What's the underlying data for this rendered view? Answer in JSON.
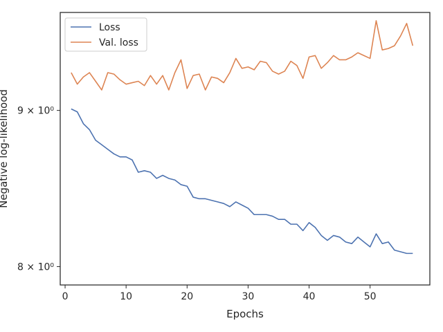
{
  "chart_data": {
    "type": "line",
    "xlabel": "Epochs",
    "ylabel": "Negative log-likelihood",
    "y_scale": "log",
    "xlim": [
      -0.8,
      59.8
    ],
    "ylim": [
      7.89,
      9.69
    ],
    "grid": false,
    "legend_position": "top-left",
    "x_ticks": [
      0,
      10,
      20,
      30,
      40,
      50
    ],
    "x_tick_labels": [
      "0",
      "10",
      "20",
      "30",
      "40",
      "50"
    ],
    "y_ticks": [
      8,
      9
    ],
    "y_tick_labels": [
      "8 × 10⁰",
      "9 × 10⁰"
    ],
    "x": [
      1,
      2,
      3,
      4,
      5,
      6,
      7,
      8,
      9,
      10,
      11,
      12,
      13,
      14,
      15,
      16,
      17,
      18,
      19,
      20,
      21,
      22,
      23,
      24,
      25,
      26,
      27,
      28,
      29,
      30,
      31,
      32,
      33,
      34,
      35,
      36,
      37,
      38,
      39,
      40,
      41,
      42,
      43,
      44,
      45,
      46,
      47,
      48,
      49,
      50,
      51,
      52,
      53,
      54,
      55,
      56,
      57
    ],
    "series": [
      {
        "name": "Loss",
        "color": "#4c72b0",
        "values": [
          9.01,
          8.99,
          8.91,
          8.87,
          8.8,
          8.77,
          8.74,
          8.71,
          8.69,
          8.69,
          8.67,
          8.59,
          8.6,
          8.59,
          8.55,
          8.57,
          8.55,
          8.54,
          8.51,
          8.5,
          8.43,
          8.42,
          8.42,
          8.41,
          8.4,
          8.39,
          8.37,
          8.4,
          8.38,
          8.36,
          8.32,
          8.32,
          8.32,
          8.31,
          8.29,
          8.29,
          8.26,
          8.26,
          8.22,
          8.27,
          8.24,
          8.19,
          8.16,
          8.19,
          8.18,
          8.15,
          8.14,
          8.18,
          8.15,
          8.12,
          8.2,
          8.14,
          8.15,
          8.1,
          8.09,
          8.08,
          8.08
        ]
      },
      {
        "name": "Val. loss",
        "color": "#dd8452",
        "values": [
          9.26,
          9.18,
          9.23,
          9.26,
          9.2,
          9.14,
          9.26,
          9.25,
          9.21,
          9.18,
          9.19,
          9.2,
          9.17,
          9.24,
          9.18,
          9.24,
          9.14,
          9.26,
          9.35,
          9.15,
          9.24,
          9.25,
          9.14,
          9.23,
          9.22,
          9.19,
          9.26,
          9.36,
          9.29,
          9.3,
          9.28,
          9.34,
          9.33,
          9.27,
          9.25,
          9.27,
          9.34,
          9.31,
          9.22,
          9.37,
          9.38,
          9.29,
          9.33,
          9.38,
          9.35,
          9.35,
          9.37,
          9.4,
          9.38,
          9.36,
          9.63,
          9.42,
          9.43,
          9.45,
          9.52,
          9.61,
          9.45
        ]
      }
    ]
  }
}
